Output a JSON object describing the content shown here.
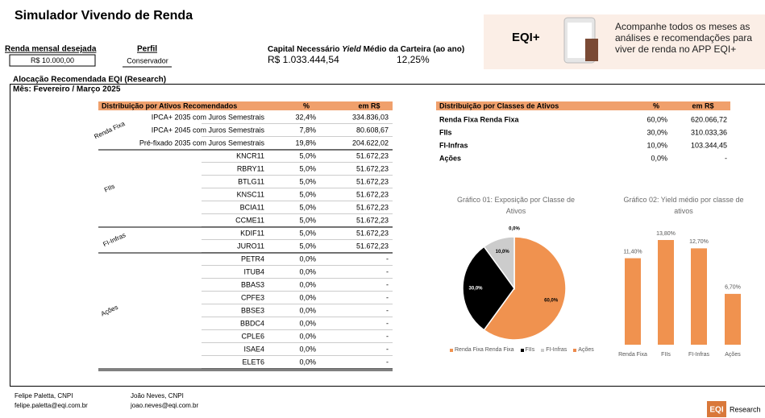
{
  "header": {
    "title": "Simulador Vivendo de Renda"
  },
  "inputs": {
    "income_label": "Renda mensal desejada",
    "income_value": "R$ 10.000,00",
    "profile_label": "Perfil",
    "profile_value": "Conservador",
    "capital_label": "Capital Necessário",
    "yield_label_italic": "Yield",
    "yield_label_rest": "Médio da Carteira (ao ano)",
    "capital_value": "R$ 1.033.444,54",
    "yield_value": "12,25%"
  },
  "banner": {
    "logo": "EQI+",
    "text": "Acompanhe todos os meses as análises e recomendações para viver de renda no APP EQI+"
  },
  "section": {
    "title": "Alocação Recomendada EQI (Research)",
    "month": "Mês: Fevereiro / Março 2025"
  },
  "allocation_table": {
    "headers": [
      "Distribuição por Ativos Recomendados",
      "%",
      "em R$"
    ],
    "groups": [
      {
        "label": "Renda Fixa",
        "rows": [
          [
            "IPCA+ 2035 com Juros Semestrais",
            "32,4%",
            "334.836,03"
          ],
          [
            "IPCA+ 2045 com Juros Semestrais",
            "7,8%",
            "80.608,67"
          ],
          [
            "Pré-fixado 2035 com Juros Semestrais",
            "19,8%",
            "204.622,02"
          ]
        ]
      },
      {
        "label": "FIIs",
        "rows": [
          [
            "KNCR11",
            "5,0%",
            "51.672,23"
          ],
          [
            "RBRY11",
            "5,0%",
            "51.672,23"
          ],
          [
            "BTLG11",
            "5,0%",
            "51.672,23"
          ],
          [
            "KNSC11",
            "5,0%",
            "51.672,23"
          ],
          [
            "BCIA11",
            "5,0%",
            "51.672,23"
          ],
          [
            "CCME11",
            "5,0%",
            "51.672,23"
          ]
        ]
      },
      {
        "label": "FI-Infras",
        "rows": [
          [
            "KDIF11",
            "5,0%",
            "51.672,23"
          ],
          [
            "JURO11",
            "5,0%",
            "51.672,23"
          ]
        ]
      },
      {
        "label": "Ações",
        "rows": [
          [
            "PETR4",
            "0,0%",
            "-"
          ],
          [
            "ITUB4",
            "0,0%",
            "-"
          ],
          [
            "BBAS3",
            "0,0%",
            "-"
          ],
          [
            "CPFE3",
            "0,0%",
            "-"
          ],
          [
            "BBSE3",
            "0,0%",
            "-"
          ],
          [
            "BBDC4",
            "0,0%",
            "-"
          ],
          [
            "CPLE6",
            "0,0%",
            "-"
          ],
          [
            "ISAE4",
            "0,0%",
            "-"
          ],
          [
            "ELET6",
            "0,0%",
            "-"
          ]
        ]
      }
    ]
  },
  "class_table": {
    "headers": [
      "Distribuição por Classes de Ativos",
      "%",
      "em R$"
    ],
    "rows": [
      [
        "Renda Fixa Renda Fixa",
        "60,0%",
        "620.066,72"
      ],
      [
        "FIIs",
        "30,0%",
        "310.033,36"
      ],
      [
        "FI-Infras",
        "10,0%",
        "103.344,45"
      ],
      [
        "Ações",
        "0,0%",
        "-"
      ]
    ]
  },
  "chart_data": [
    {
      "type": "pie",
      "title": "Gráfico 01: Exposição por Classe de Ativos",
      "categories": [
        "Renda Fixa Renda Fixa",
        "FIIs",
        "FI-Infras",
        "Ações"
      ],
      "values": [
        60,
        30,
        10,
        0
      ],
      "value_labels": [
        "60,0%",
        "30,0%",
        "10,0%",
        "0,0%"
      ],
      "colors": [
        "#f0924f",
        "#000000",
        "#cccccc",
        "#ed8a4c"
      ]
    },
    {
      "type": "bar",
      "title": "Gráfico 02: Yield médio por classe de ativos",
      "categories": [
        "Renda Fixa",
        "FIIs",
        "FI-Infras",
        "Ações"
      ],
      "values": [
        11.4,
        13.8,
        12.7,
        6.7
      ],
      "value_labels": [
        "11,40%",
        "13,80%",
        "12,70%",
        "6,70%"
      ],
      "color": "#f0924f"
    }
  ],
  "footer": {
    "authors": [
      {
        "name": "Felipe Paletta, CNPI",
        "email": "felipe.paletta@eqi.com.br"
      },
      {
        "name": "João Neves, CNPI",
        "email": "joao.neves@eqi.com.br"
      }
    ],
    "logo": "EQI",
    "logo_label": "Research"
  }
}
